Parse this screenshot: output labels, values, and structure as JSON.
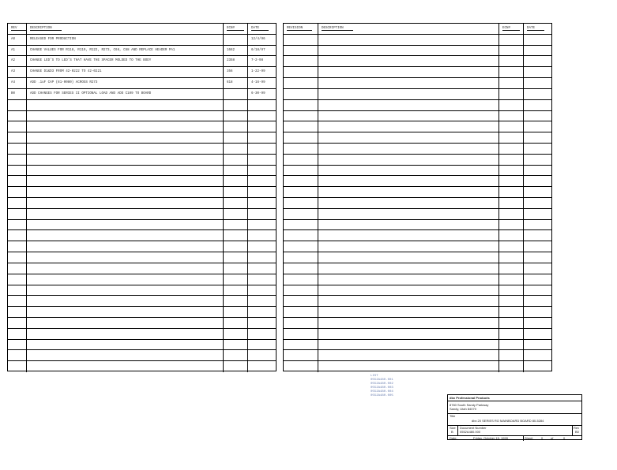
{
  "left_table": {
    "headers": [
      "REV",
      "DESCRIPTION",
      "ECN#",
      "DATE"
    ],
    "rows": [
      [
        "A0",
        "RELEASED FOR PRODUCTION",
        "",
        "12/4/96"
      ],
      [
        "A1",
        "CHANGE VALUES FOR R118, R119, R122, R273, C66, C68 AND REPLACE HEADER PA1",
        "1662",
        "6/18/97"
      ],
      [
        "A2",
        "CHANGE LED'S TO LED'S THAT HAVE THE SPACER MOLDED TO THE BODY",
        "2358",
        "7-2-98"
      ],
      [
        "A3",
        "CHANGE D1&D3 FROM 42-0222 TO 42-0221",
        "356",
        "1-22-99"
      ],
      [
        "A4",
        "ADD .1uF CAP (81-0080) ACROSS R273",
        "618",
        "4-16-99"
      ],
      [
        "B0",
        "ADD CHANGES FOR SERIES II OPTIONAL LOAD AND ADD C109 TO BOARD",
        "",
        "6-30-99"
      ]
    ]
  },
  "right_table": {
    "headers": [
      "REVISION",
      "DESCRIPTION",
      "ECN#",
      "DATE"
    ],
    "rows": []
  },
  "file_list": [
    "LIST",
    "0552A480.001",
    "0552A480.002",
    "0552A480.003",
    "0552A480.004",
    "0552A480.005"
  ],
  "title_block": {
    "company": "dbx Professional Products",
    "address1": "8760 South Sandy Parkway",
    "address2": "Sandy, Utah 84070",
    "title_label": "Title",
    "title": "dbx 20 SERIES RO MAINBOARD BOARD 80-5284",
    "size_label": "Size",
    "size": "B",
    "docnum_label": "Document Number",
    "docnum": "0552A480.000",
    "rev_label": "Rev",
    "rev": "B0",
    "date_label": "Date:",
    "date": "Friday, October 15, 1999",
    "sheet_label": "Sheet",
    "sheet": "0",
    "of_label": "of",
    "sheets": "0"
  }
}
